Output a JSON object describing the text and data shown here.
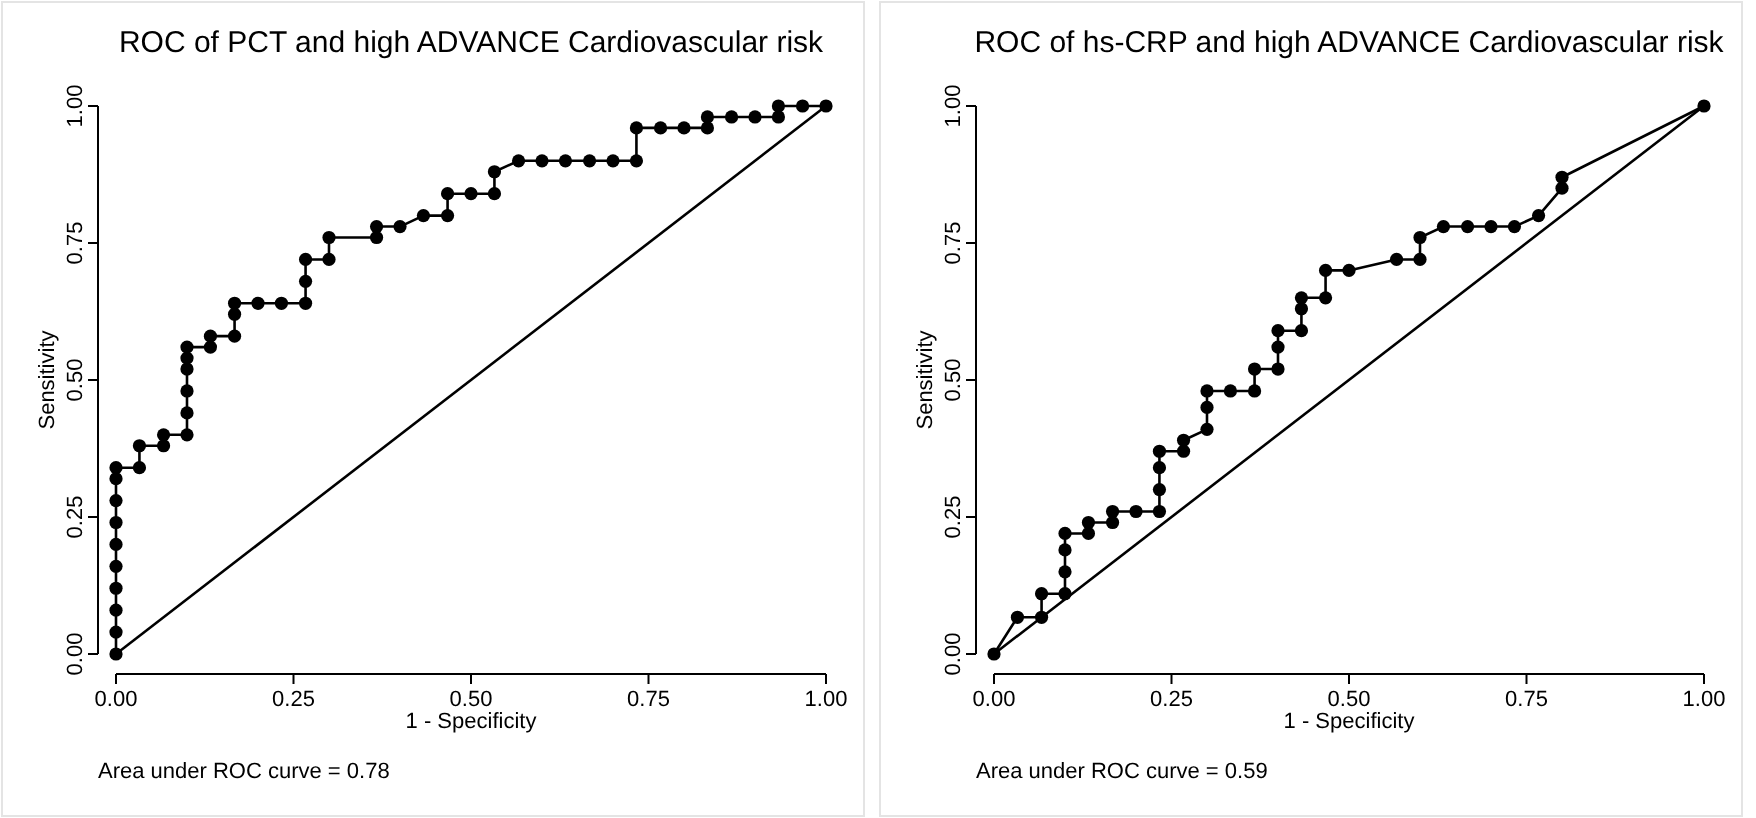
{
  "chart_data": [
    {
      "type": "line",
      "title": "ROC of PCT and high ADVANCE Cardiovascular risk",
      "xlabel": "1 - Specificity",
      "ylabel": "Sensitivity",
      "xlim": [
        0,
        1
      ],
      "ylim": [
        0,
        1
      ],
      "xticks": [
        {
          "value": 0,
          "label": "0.00"
        },
        {
          "value": 0.25,
          "label": "0.25"
        },
        {
          "value": 0.5,
          "label": "0.50"
        },
        {
          "value": 0.75,
          "label": "0.75"
        },
        {
          "value": 1,
          "label": "1.00"
        }
      ],
      "yticks": [
        {
          "value": 0,
          "label": "0.00"
        },
        {
          "value": 0.25,
          "label": "0.25"
        },
        {
          "value": 0.5,
          "label": "0.50"
        },
        {
          "value": 0.75,
          "label": "0.75"
        },
        {
          "value": 1,
          "label": "1.00"
        }
      ],
      "grid": false,
      "series": [
        {
          "color": "#000000",
          "marker": "circle",
          "x": [
            0,
            0,
            0,
            0,
            0,
            0,
            0,
            0,
            0,
            0,
            0.033,
            0.033,
            0.067,
            0.067,
            0.1,
            0.1,
            0.1,
            0.1,
            0.1,
            0.1,
            0.133,
            0.133,
            0.167,
            0.167,
            0.167,
            0.2,
            0.233,
            0.267,
            0.267,
            0.267,
            0.3,
            0.3,
            0.367,
            0.367,
            0.4,
            0.433,
            0.467,
            0.467,
            0.5,
            0.533,
            0.533,
            0.567,
            0.6,
            0.633,
            0.667,
            0.7,
            0.733,
            0.733,
            0.767,
            0.8,
            0.833,
            0.833,
            0.867,
            0.9,
            0.933,
            0.933,
            0.967,
            1
          ],
          "values": [
            0,
            0.04,
            0.08,
            0.12,
            0.16,
            0.2,
            0.24,
            0.28,
            0.32,
            0.34,
            0.34,
            0.38,
            0.38,
            0.4,
            0.4,
            0.44,
            0.48,
            0.52,
            0.54,
            0.56,
            0.56,
            0.58,
            0.58,
            0.62,
            0.64,
            0.64,
            0.64,
            0.64,
            0.68,
            0.72,
            0.72,
            0.76,
            0.76,
            0.78,
            0.78,
            0.8,
            0.8,
            0.84,
            0.84,
            0.84,
            0.88,
            0.9,
            0.9,
            0.9,
            0.9,
            0.9,
            0.9,
            0.96,
            0.96,
            0.96,
            0.96,
            0.98,
            0.98,
            0.98,
            0.98,
            1,
            1,
            1
          ]
        },
        {
          "color": "#000000",
          "marker": "none",
          "x": [
            0,
            1
          ],
          "values": [
            0,
            1
          ]
        }
      ],
      "annotations": [
        "Area under ROC curve = 0.78"
      ]
    },
    {
      "type": "line",
      "title": "ROC of hs-CRP and high ADVANCE Cardiovascular risk",
      "xlabel": "1 - Specificity",
      "ylabel": "Sensitivity",
      "xlim": [
        0,
        1
      ],
      "ylim": [
        0,
        1
      ],
      "xticks": [
        {
          "value": 0,
          "label": "0.00"
        },
        {
          "value": 0.25,
          "label": "0.25"
        },
        {
          "value": 0.5,
          "label": "0.50"
        },
        {
          "value": 0.75,
          "label": "0.75"
        },
        {
          "value": 1,
          "label": "1.00"
        }
      ],
      "yticks": [
        {
          "value": 0,
          "label": "0.00"
        },
        {
          "value": 0.25,
          "label": "0.25"
        },
        {
          "value": 0.5,
          "label": "0.50"
        },
        {
          "value": 0.75,
          "label": "0.75"
        },
        {
          "value": 1,
          "label": "1.00"
        }
      ],
      "grid": false,
      "series": [
        {
          "color": "#000000",
          "marker": "circle",
          "x": [
            0,
            0.033,
            0.067,
            0.067,
            0.1,
            0.1,
            0.1,
            0.1,
            0.133,
            0.133,
            0.167,
            0.167,
            0.2,
            0.233,
            0.233,
            0.233,
            0.233,
            0.267,
            0.267,
            0.3,
            0.3,
            0.3,
            0.333,
            0.367,
            0.367,
            0.4,
            0.4,
            0.4,
            0.433,
            0.433,
            0.433,
            0.467,
            0.467,
            0.5,
            0.567,
            0.6,
            0.6,
            0.633,
            0.667,
            0.7,
            0.733,
            0.767,
            0.8,
            0.8,
            1
          ],
          "values": [
            0,
            0.067,
            0.067,
            0.11,
            0.11,
            0.15,
            0.19,
            0.22,
            0.22,
            0.24,
            0.24,
            0.26,
            0.26,
            0.26,
            0.3,
            0.34,
            0.37,
            0.37,
            0.39,
            0.41,
            0.45,
            0.48,
            0.48,
            0.48,
            0.52,
            0.52,
            0.56,
            0.59,
            0.59,
            0.63,
            0.65,
            0.65,
            0.7,
            0.7,
            0.72,
            0.72,
            0.76,
            0.78,
            0.78,
            0.78,
            0.78,
            0.8,
            0.85,
            0.87,
            1
          ]
        },
        {
          "color": "#000000",
          "marker": "none",
          "x": [
            0,
            1
          ],
          "values": [
            0,
            1
          ]
        }
      ],
      "annotations": [
        "Area under ROC curve = 0.59"
      ]
    }
  ]
}
